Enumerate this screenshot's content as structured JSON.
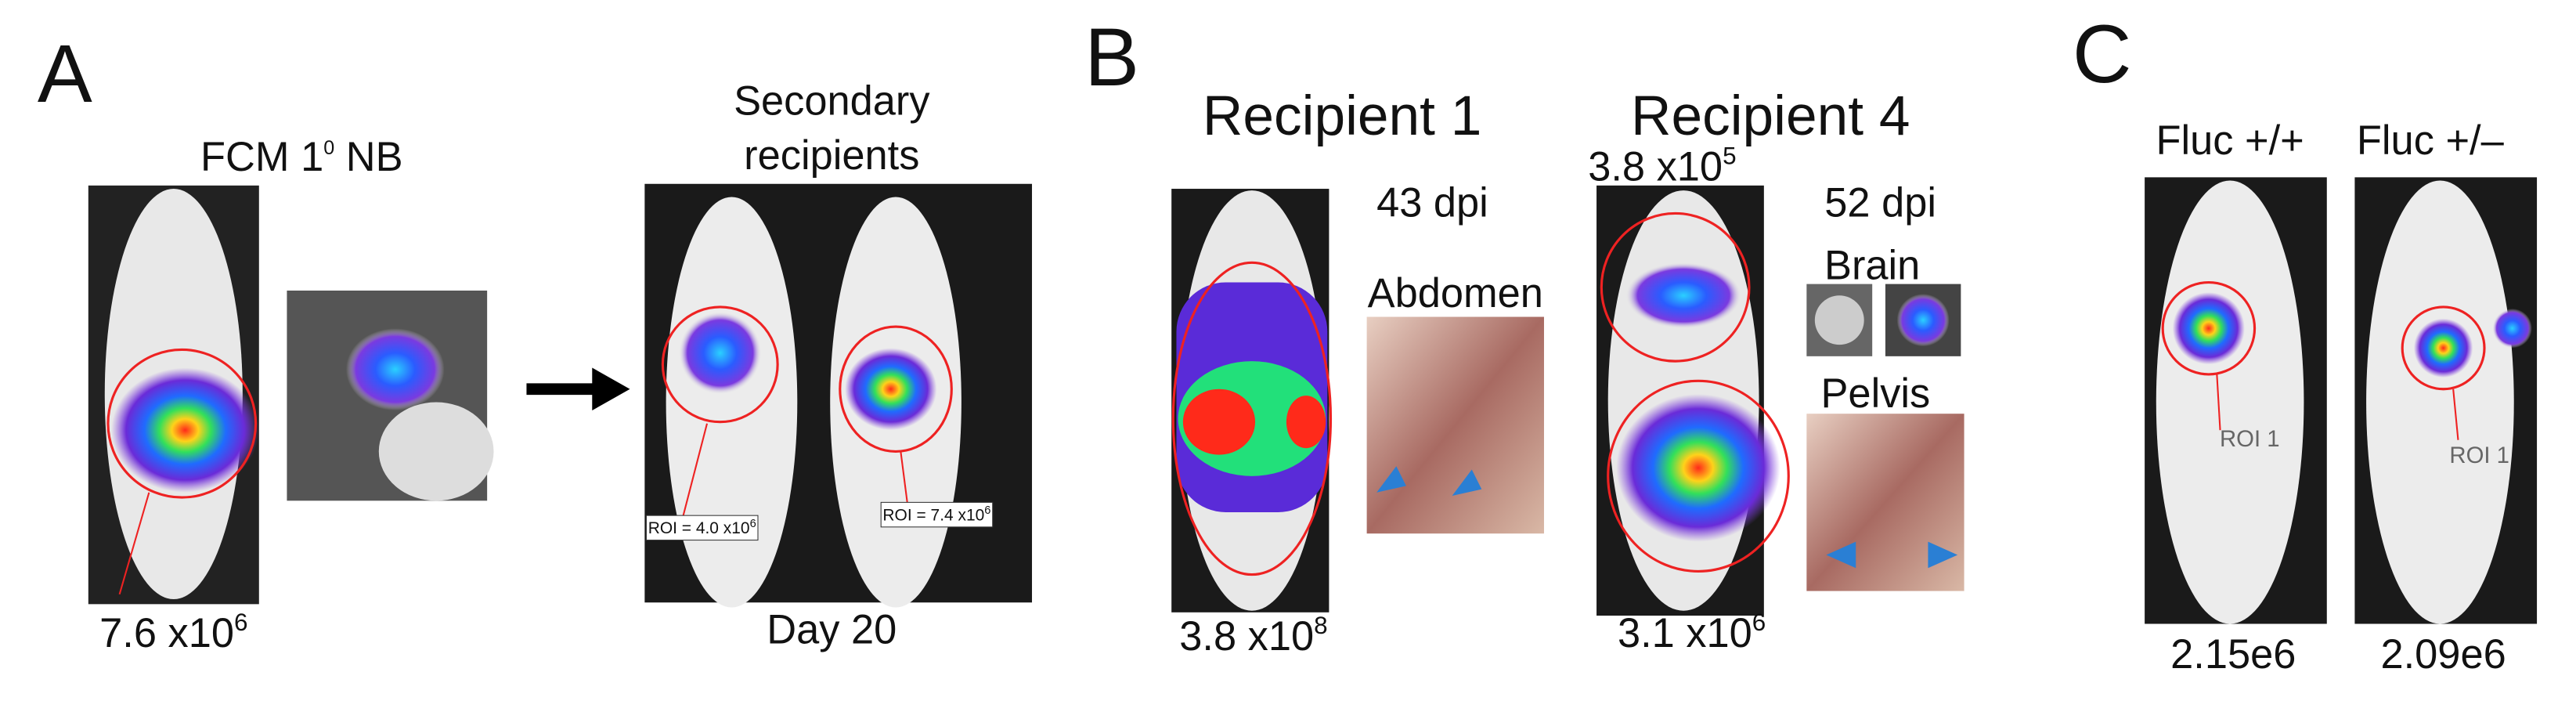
{
  "panel_a": {
    "label": "A",
    "title": {
      "base": "FCM 1",
      "sup": "0",
      "rest": " NB"
    },
    "value": {
      "base": "7.6 x10",
      "exp": "6"
    },
    "secondary_title": [
      "Secondary",
      "recipients"
    ],
    "roi_left": {
      "base": "ROI = 4.0 x10",
      "exp": "6"
    },
    "roi_right": {
      "base": "ROI = 7.4 x10",
      "exp": "6"
    },
    "day": "Day 20"
  },
  "panel_b": {
    "label": "B",
    "recipient_1": {
      "title": "Recipient 1",
      "dpi": "43 dpi",
      "organ": "Abdomen",
      "value": {
        "base": "3.8 x10",
        "exp": "8"
      }
    },
    "recipient_4": {
      "title": "Recipient 4",
      "dpi": "52 dpi",
      "organ_1": "Brain",
      "organ_2": "Pelvis",
      "value_top": {
        "base": "3.8 x10",
        "exp": "5"
      },
      "value_bottom": {
        "base": "3.1 x10",
        "exp": "6"
      }
    }
  },
  "panel_c": {
    "label": "C",
    "mice": [
      {
        "title": "Fluc +/+",
        "roi": "ROI 1",
        "value": "2.15e6"
      },
      {
        "title": "Fluc +/–",
        "roi": "ROI 1",
        "value": "2.09e6"
      }
    ]
  }
}
